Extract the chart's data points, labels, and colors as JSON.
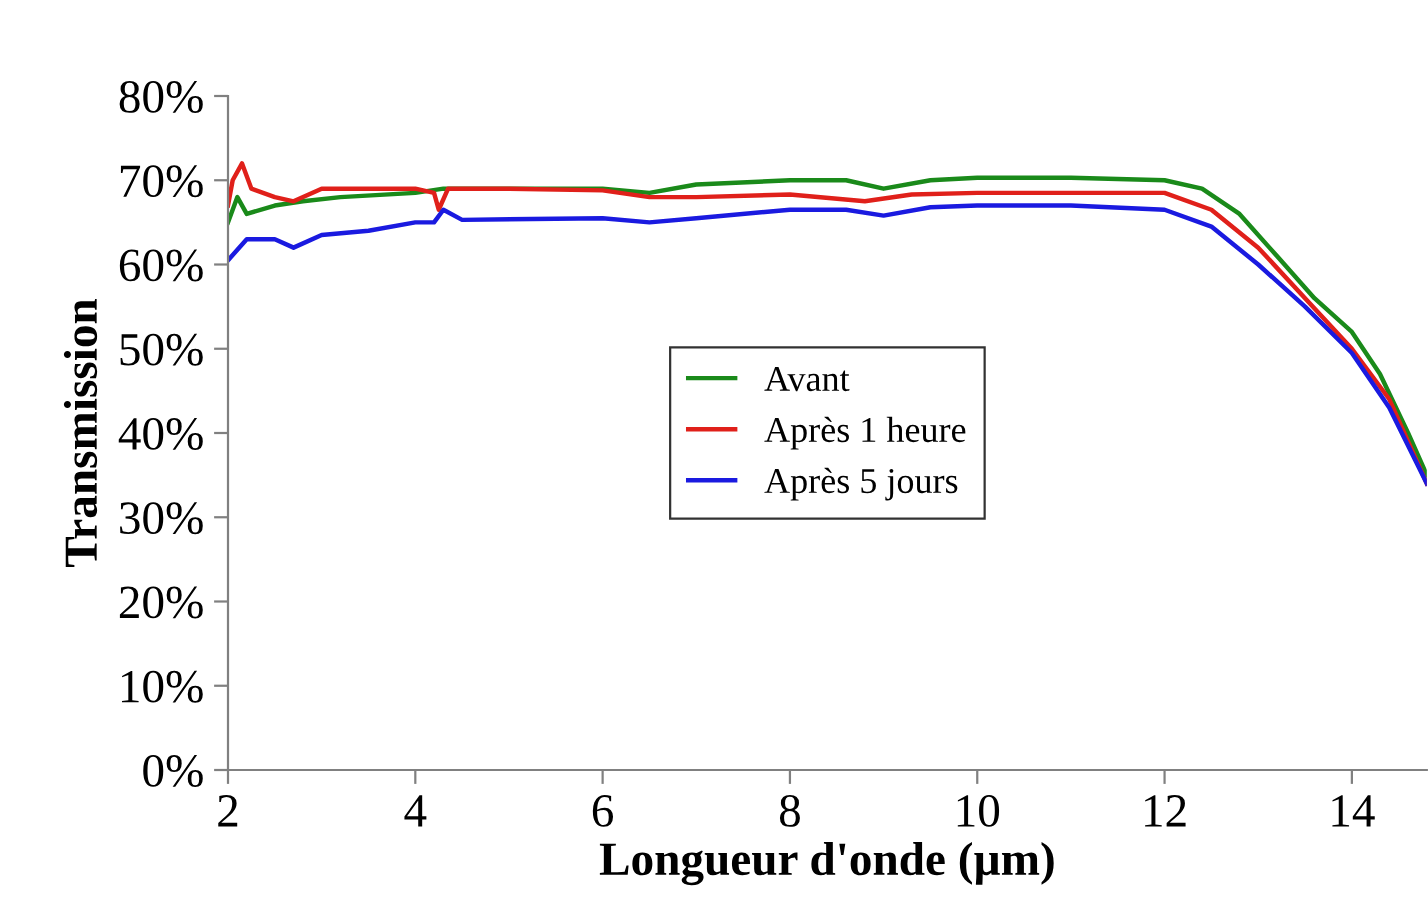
{
  "chart_data": {
    "type": "line",
    "xlabel": "Longueur d'onde (µm)",
    "ylabel": "Transmission",
    "xlim": [
      2,
      14.8
    ],
    "xticks": [
      2,
      4,
      6,
      8,
      10,
      12,
      14
    ],
    "ylim": [
      0,
      80
    ],
    "yticks": [
      {
        "value": 0,
        "label": "0%"
      },
      {
        "value": 10,
        "label": "10%"
      },
      {
        "value": 20,
        "label": "20%"
      },
      {
        "value": 30,
        "label": "30%"
      },
      {
        "value": 40,
        "label": "40%"
      },
      {
        "value": 50,
        "label": "50%"
      },
      {
        "value": 60,
        "label": "60%"
      },
      {
        "value": 70,
        "label": "70%"
      },
      {
        "value": 80,
        "label": "80%"
      }
    ],
    "grid": false,
    "legend": "center",
    "line_style": "solid",
    "marker": "none",
    "series": [
      {
        "name": "Avant",
        "color": "#1a8a1a",
        "x": [
          2,
          2.1,
          2.2,
          2.5,
          2.8,
          3.2,
          4,
          4.3,
          6,
          6.5,
          7,
          8,
          8.6,
          9,
          9.5,
          10,
          11,
          12,
          12.4,
          12.8,
          13.2,
          13.6,
          14,
          14.3,
          14.6,
          14.8
        ],
        "values": [
          65,
          68,
          66,
          67,
          67.5,
          68,
          68.5,
          69,
          69,
          68.5,
          69.5,
          70,
          70,
          69,
          70,
          70.3,
          70.3,
          70,
          69,
          66,
          61,
          56,
          52,
          47,
          40,
          35
        ]
      },
      {
        "name": "Après 1 heure",
        "color": "#e0201a",
        "x": [
          2,
          2.05,
          2.15,
          2.25,
          2.5,
          2.7,
          3,
          3.5,
          4,
          4.2,
          4.25,
          4.35,
          5,
          6,
          6.5,
          7,
          8,
          8.8,
          9.3,
          10,
          11,
          12,
          12.5,
          13,
          13.5,
          14,
          14.4,
          14.8
        ],
        "values": [
          67,
          70,
          72,
          69,
          68,
          67.5,
          69,
          69,
          69,
          68.5,
          66.5,
          69,
          69,
          68.8,
          68,
          68,
          68.3,
          67.5,
          68.3,
          68.5,
          68.5,
          68.5,
          66.5,
          62,
          56,
          50,
          44,
          34
        ]
      },
      {
        "name": "Après 5 jours",
        "color": "#1a1ae0",
        "x": [
          2,
          2.2,
          2.5,
          2.7,
          3,
          3.5,
          4,
          4.2,
          4.3,
          4.5,
          6,
          6.5,
          7,
          8,
          8.6,
          9,
          9.5,
          10,
          11,
          12,
          12.5,
          13,
          13.5,
          14,
          14.4,
          14.8
        ],
        "values": [
          60.5,
          63,
          63,
          62,
          63.5,
          64,
          65,
          65,
          66.5,
          65.3,
          65.5,
          65,
          65.5,
          66.5,
          66.5,
          65.8,
          66.8,
          67,
          67,
          66.5,
          64.5,
          60,
          55,
          49.5,
          43,
          34
        ]
      }
    ]
  }
}
